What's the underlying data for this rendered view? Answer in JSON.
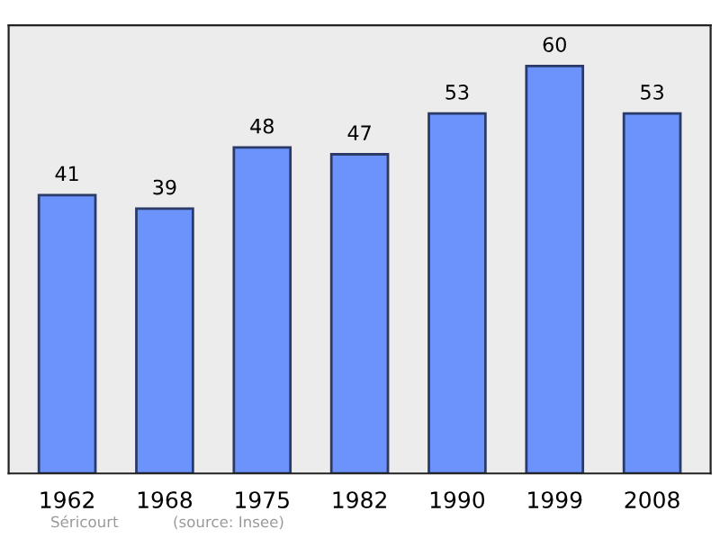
{
  "chart_data": {
    "type": "bar",
    "categories": [
      "1962",
      "1968",
      "1975",
      "1982",
      "1990",
      "1999",
      "2008"
    ],
    "values": [
      41,
      39,
      48,
      47,
      53,
      60,
      53
    ],
    "color": "#6b93fb",
    "data_labels": true,
    "ylim": [
      0,
      66
    ],
    "grid": false,
    "legend": false,
    "tick_labels": "x",
    "annotations": [
      "Séricourt",
      "(source: Insee)"
    ]
  }
}
